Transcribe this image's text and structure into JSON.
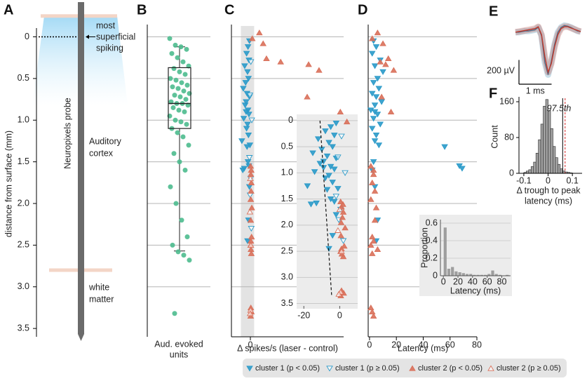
{
  "chart_data": [
    {
      "type": "probe",
      "panel": "A",
      "ylabel": "distance from surface (mm)",
      "ylim": [
        3.6,
        -0.4
      ],
      "yticks": [
        0,
        0.5,
        {
          "value": 1,
          "label": "1.0"
        },
        1.5,
        {
          "value": 2,
          "label": "2.0"
        },
        2.5,
        {
          "value": 3,
          "label": "3.0"
        },
        3.5
      ],
      "region_bounds": [
        -0.25,
        2.8
      ],
      "superficial_depth": 0,
      "probe_label": "Neuropixels probe",
      "annotations": [
        {
          "lines": [
            "most",
            "superficial",
            "spiking"
          ]
        },
        {
          "lines": [
            "Auditory",
            "cortex"
          ]
        },
        {
          "lines": [
            "white",
            "matter"
          ]
        }
      ]
    },
    {
      "type": "box",
      "panel": "B",
      "xlabel": [
        "Aud. evoked",
        "units"
      ],
      "color": "#4dbb8e",
      "ylim": [
        3.6,
        -0.4
      ],
      "grid_y": [
        0,
        0.5,
        1,
        1.5,
        2,
        2.5,
        3
      ],
      "values": [
        0.02,
        0.1,
        0.12,
        0.15,
        0.2,
        0.25,
        0.3,
        0.35,
        0.38,
        0.42,
        0.45,
        0.5,
        0.52,
        0.55,
        0.58,
        0.6,
        0.62,
        0.65,
        0.68,
        0.7,
        0.72,
        0.75,
        0.78,
        0.8,
        0.8,
        0.82,
        0.85,
        0.88,
        0.9,
        0.95,
        1.0,
        1.02,
        1.05,
        1.1,
        1.15,
        1.2,
        1.3,
        1.4,
        1.5,
        1.6,
        1.8,
        2.0,
        2.2,
        2.4,
        2.5,
        2.58,
        2.62,
        2.68,
        3.32
      ],
      "box": {
        "whislo": 0.12,
        "q1": 0.37,
        "med": 0.8,
        "q3": 1.1,
        "whishi": 2.57
      }
    },
    {
      "type": "scatter",
      "panel": "C",
      "xlabel": "Δ spikes/s (laser - control)",
      "xlim": [
        -40,
        197
      ],
      "xticks": [
        0
      ],
      "ylim": [
        3.6,
        -0.4
      ],
      "grid_y": [
        0,
        0.5,
        1,
        1.5,
        2,
        2.5,
        3
      ],
      "shade_x": [
        -20,
        8
      ],
      "series": [
        {
          "name": "cluster 1 (p < 0.05)",
          "color": "#2a9ac9",
          "marker": "down",
          "filled": true,
          "delta": [
            -2,
            -5,
            -8,
            -3,
            -12,
            -6,
            -4,
            -10,
            -15,
            -7,
            -2,
            -9,
            -11,
            -5,
            -3,
            -14,
            -6,
            -8,
            -4,
            -18,
            -1,
            -7,
            -3,
            -13,
            -9,
            -5,
            -16,
            -2,
            -4,
            -6
          ],
          "depth": [
            0.05,
            0.12,
            0.2,
            0.28,
            0.35,
            0.42,
            0.5,
            0.55,
            0.62,
            0.68,
            0.72,
            0.78,
            0.82,
            0.88,
            0.93,
            0.98,
            1.05,
            1.1,
            1.18,
            1.25,
            1.3,
            1.32,
            1.55,
            1.58,
            0.9,
            1.5,
            1.6,
            1.8,
            2.2,
            2.45
          ],
          "latency": [
            3,
            5,
            2,
            8,
            4,
            10,
            6,
            3,
            7,
            2,
            5,
            9,
            4,
            1,
            6,
            3,
            8,
            2,
            5,
            4,
            7,
            56,
            67,
            69,
            4,
            3,
            2,
            4,
            6,
            5
          ]
        },
        {
          "name": "cluster 1 (p ≥ 0.05)",
          "color": "#2a9ac9",
          "marker": "down",
          "filled": false,
          "delta": [
            1,
            -1,
            3,
            -2,
            0.5,
            2,
            -0.5
          ],
          "depth": [
            0.3,
            0.7,
            1.0,
            1.45,
            1.7,
            2.3,
            1.9
          ]
        },
        {
          "name": "cluster 2 (p < 0.05)",
          "color": "#d9705a",
          "marker": "up",
          "filled": true,
          "delta": [
            0.5,
            1,
            2,
            1.5,
            0.8,
            3,
            2.5,
            1,
            0.5,
            1.2,
            2,
            0.7,
            1.8,
            19,
            27,
            34,
            64,
            123,
            145,
            120,
            190,
            4,
            1,
            2.2,
            0.6
          ],
          "depth": [
            1.55,
            1.65,
            1.75,
            1.85,
            1.95,
            2.05,
            2.4,
            2.45,
            2.5,
            2.55,
            2.6,
            2.2,
            1.6,
            -0.05,
            0.08,
            0.26,
            0.3,
            0.33,
            0.4,
            0.72,
            0.9,
            0.02,
            3.25,
            3.3,
            3.35
          ],
          "latency": [
            1,
            3,
            2,
            4,
            1,
            5,
            2,
            3,
            1,
            6,
            2,
            4,
            3,
            6,
            10,
            14,
            8,
            12,
            18,
            9,
            16,
            2,
            1,
            2,
            3
          ]
        },
        {
          "name": "cluster 2 (p ≥ 0.05)",
          "color": "#d9705a",
          "marker": "up",
          "filled": false,
          "delta": [
            0,
            -1,
            1,
            0.5,
            -0.5
          ],
          "depth": [
            1.7,
            2.1,
            2.5,
            3.28,
            3.32
          ]
        }
      ],
      "inset": {
        "xlim": [
          -24,
          10
        ],
        "ylim": [
          3.6,
          -0.12
        ],
        "xticks": [
          -20,
          0
        ],
        "yticks": [
          0,
          0.5,
          {
            "value": 1,
            "label": "1.0"
          },
          1.5,
          {
            "value": 2,
            "label": "2.0"
          },
          2.5,
          {
            "value": 3,
            "label": "3.0"
          },
          3.5
        ],
        "fit_line": {
          "x": [
            -11,
            -4.5
          ],
          "y": [
            0,
            3.35
          ]
        }
      }
    },
    {
      "type": "latency",
      "panel": "D",
      "xlabel": "Latency (ms)",
      "xlim": [
        -1,
        80
      ],
      "xticks": [
        0,
        20,
        40,
        60,
        80
      ],
      "ylim": [
        3.6,
        -0.4
      ],
      "grid_y": [
        0,
        0.5,
        1,
        1.5,
        2,
        2.5,
        3
      ],
      "inset": {
        "type": "histogram",
        "bins": [
          0,
          5,
          10,
          15,
          20,
          25,
          30,
          35,
          40,
          45,
          50,
          55,
          60,
          65,
          70,
          75,
          80,
          85,
          90
        ],
        "values": [
          0.55,
          0.08,
          0.1,
          0.05,
          0.04,
          0.03,
          0.02,
          0.02,
          0.01,
          0.01,
          0.01,
          0.01,
          0.02,
          0.06,
          0.02,
          0.01,
          0.0,
          0.01
        ],
        "xlim": [
          -4,
          92
        ],
        "xticks": [
          0,
          20,
          40,
          60,
          80
        ],
        "ylim": [
          0,
          0.6
        ],
        "yticks": [
          0,
          0.2,
          0.4,
          0.6
        ],
        "xlabel": "Latency (ms)",
        "ylabel": "Proportion",
        "color": "#9e9e9e"
      }
    },
    {
      "type": "waveform",
      "panel": "E",
      "xlim": [
        0,
        2
      ],
      "ylim": [
        -400,
        150
      ],
      "x": [
        0,
        0.1,
        0.2,
        0.3,
        0.4,
        0.5,
        0.6,
        0.7,
        0.8,
        0.9,
        1.0,
        1.1,
        1.2,
        1.3,
        1.4,
        1.5,
        1.6,
        1.7,
        1.8,
        1.9,
        2.0
      ],
      "series": [
        {
          "color": "#2a7fa8",
          "values": [
            0,
            0,
            5,
            10,
            10,
            15,
            20,
            40,
            -30,
            -250,
            -350,
            -240,
            -100,
            0,
            40,
            55,
            50,
            40,
            25,
            10,
            5
          ]
        },
        {
          "color": "#c0392b",
          "values": [
            0,
            5,
            10,
            15,
            20,
            25,
            30,
            45,
            -20,
            -200,
            -330,
            -260,
            -120,
            -20,
            30,
            45,
            45,
            35,
            25,
            15,
            5
          ]
        }
      ],
      "scalebar": {
        "y": {
          "value": 200,
          "label": "200 µV"
        },
        "x": {
          "value": 1,
          "label": "1 ms"
        }
      }
    },
    {
      "type": "histogram",
      "panel": "F",
      "ylabel": "Count",
      "xlabel": [
        "Δ trough to peak",
        "latency (ms)"
      ],
      "color": "#a6a6a6",
      "bins": [
        -0.1,
        -0.09,
        -0.08,
        -0.07,
        -0.06,
        -0.05,
        -0.04,
        -0.03,
        -0.02,
        -0.01,
        0,
        0.01,
        0.02,
        0.03,
        0.04,
        0.05,
        0.06,
        0.07,
        0.08,
        0.09,
        0.1
      ],
      "values": [
        2,
        5,
        8,
        15,
        25,
        45,
        75,
        110,
        150,
        165,
        140,
        100,
        60,
        35,
        20,
        10,
        5,
        3,
        2,
        1
      ],
      "xlim": [
        -0.12,
        0.14
      ],
      "xticks": [
        -0.1,
        0,
        0.1
      ],
      "ylim": [
        0,
        171
      ],
      "yticks": [
        0,
        80,
        160
      ],
      "thresholds": [
        {
          "value": 0.06,
          "color": "#000000",
          "dashed": false
        },
        {
          "value": 0.07,
          "color": "#d62728",
          "dashed": true
        }
      ],
      "threshold_label": "97.5th"
    }
  ]
}
